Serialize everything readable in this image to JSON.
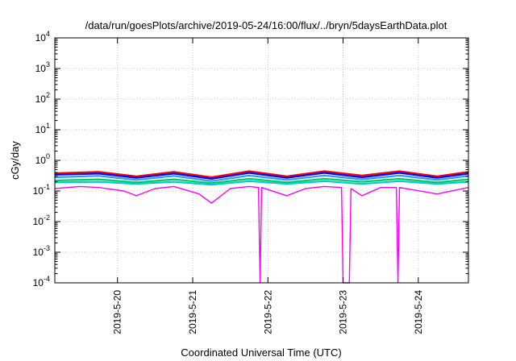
{
  "chart_data": {
    "type": "line",
    "title": "/data/run/goesPlots/archive/2019-05-24/16:00/flux/../bryn/5daysEarthData.plot",
    "xlabel": "Coordinated Universal Time (UTC)",
    "ylabel": "cGy/day",
    "yscale": "log",
    "ylim": [
      0.0001,
      10000
    ],
    "xlim": [
      "2019-05-19 04:00",
      "2019-05-24 16:00"
    ],
    "grid": true,
    "legend": "none",
    "y_ticks": [
      {
        "base": "10",
        "exp": "-4"
      },
      {
        "base": "10",
        "exp": "-3"
      },
      {
        "base": "10",
        "exp": "-2"
      },
      {
        "base": "10",
        "exp": "-1"
      },
      {
        "base": "10",
        "exp": "0"
      },
      {
        "base": "10",
        "exp": "1"
      },
      {
        "base": "10",
        "exp": "2"
      },
      {
        "base": "10",
        "exp": "3"
      },
      {
        "base": "10",
        "exp": "4"
      }
    ],
    "x_ticks": [
      "2019-5-20",
      "2019-5-21",
      "2019-5-22",
      "2019-5-23",
      "2019-5-24"
    ],
    "series": [
      {
        "color": "#ff0000",
        "x": [
          "2019-05-19 04:00",
          "2019-05-19 18:00",
          "2019-05-20 06:00",
          "2019-05-20 18:00",
          "2019-05-21 06:00",
          "2019-05-21 18:00",
          "2019-05-22 06:00",
          "2019-05-22 18:00",
          "2019-05-23 06:00",
          "2019-05-23 18:00",
          "2019-05-24 06:00",
          "2019-05-24 16:00"
        ],
        "values": [
          0.38,
          0.42,
          0.3,
          0.42,
          0.28,
          0.44,
          0.3,
          0.44,
          0.32,
          0.44,
          0.3,
          0.42
        ]
      },
      {
        "color": "#0000ff",
        "x": [
          "2019-05-19 04:00",
          "2019-05-19 18:00",
          "2019-05-20 06:00",
          "2019-05-20 18:00",
          "2019-05-21 06:00",
          "2019-05-21 18:00",
          "2019-05-22 06:00",
          "2019-05-22 18:00",
          "2019-05-23 06:00",
          "2019-05-23 18:00",
          "2019-05-24 06:00",
          "2019-05-24 16:00"
        ],
        "values": [
          0.34,
          0.37,
          0.27,
          0.37,
          0.25,
          0.39,
          0.27,
          0.39,
          0.28,
          0.39,
          0.27,
          0.37
        ]
      },
      {
        "color": "#3399ff",
        "x": [
          "2019-05-19 04:00",
          "2019-05-19 18:00",
          "2019-05-20 06:00",
          "2019-05-20 18:00",
          "2019-05-21 06:00",
          "2019-05-21 18:00",
          "2019-05-22 06:00",
          "2019-05-22 18:00",
          "2019-05-23 06:00",
          "2019-05-23 18:00",
          "2019-05-24 06:00",
          "2019-05-24 16:00"
        ],
        "values": [
          0.28,
          0.31,
          0.23,
          0.31,
          0.21,
          0.32,
          0.23,
          0.32,
          0.24,
          0.32,
          0.23,
          0.31
        ]
      },
      {
        "color": "#00cc66",
        "x": [
          "2019-05-19 04:00",
          "2019-05-19 18:00",
          "2019-05-20 06:00",
          "2019-05-20 18:00",
          "2019-05-21 06:00",
          "2019-05-21 18:00",
          "2019-05-22 06:00",
          "2019-05-22 18:00",
          "2019-05-23 06:00",
          "2019-05-23 18:00",
          "2019-05-24 06:00",
          "2019-05-24 16:00"
        ],
        "values": [
          0.22,
          0.24,
          0.19,
          0.24,
          0.18,
          0.25,
          0.19,
          0.25,
          0.2,
          0.25,
          0.19,
          0.24
        ]
      },
      {
        "color": "#00cccc",
        "x": [
          "2019-05-19 04:00",
          "2019-05-19 18:00",
          "2019-05-20 06:00",
          "2019-05-20 18:00",
          "2019-05-21 06:00",
          "2019-05-21 18:00",
          "2019-05-22 06:00",
          "2019-05-22 18:00",
          "2019-05-23 06:00",
          "2019-05-23 18:00",
          "2019-05-24 06:00",
          "2019-05-24 16:00"
        ],
        "values": [
          0.19,
          0.2,
          0.17,
          0.2,
          0.16,
          0.21,
          0.17,
          0.21,
          0.17,
          0.21,
          0.17,
          0.2
        ]
      },
      {
        "color": "#ff00ff",
        "x": [
          "2019-05-19 04:00",
          "2019-05-19 12:00",
          "2019-05-19 18:00",
          "2019-05-20 02:00",
          "2019-05-20 06:00",
          "2019-05-20 12:00",
          "2019-05-20 18:00",
          "2019-05-21 02:00",
          "2019-05-21 06:00",
          "2019-05-21 12:00",
          "2019-05-21 18:00",
          "2019-05-21 21:00",
          "2019-05-21 21:30",
          "2019-05-21 22:00",
          "2019-05-22 06:00",
          "2019-05-22 12:00",
          "2019-05-22 18:00",
          "2019-05-22 23:30",
          "2019-05-23 00:00",
          "2019-05-23 02:00",
          "2019-05-23 02:30",
          "2019-05-23 06:00",
          "2019-05-23 12:00",
          "2019-05-23 17:00",
          "2019-05-23 17:30",
          "2019-05-23 18:00",
          "2019-05-24 06:00",
          "2019-05-24 16:00"
        ],
        "values": [
          0.12,
          0.14,
          0.13,
          0.1,
          0.07,
          0.12,
          0.14,
          0.08,
          0.04,
          0.12,
          0.14,
          0.13,
          0.0001,
          0.13,
          0.07,
          0.12,
          0.14,
          0.13,
          0.0001,
          0.0001,
          0.12,
          0.07,
          0.13,
          0.13,
          0.0001,
          0.13,
          0.08,
          0.13
        ]
      }
    ]
  }
}
